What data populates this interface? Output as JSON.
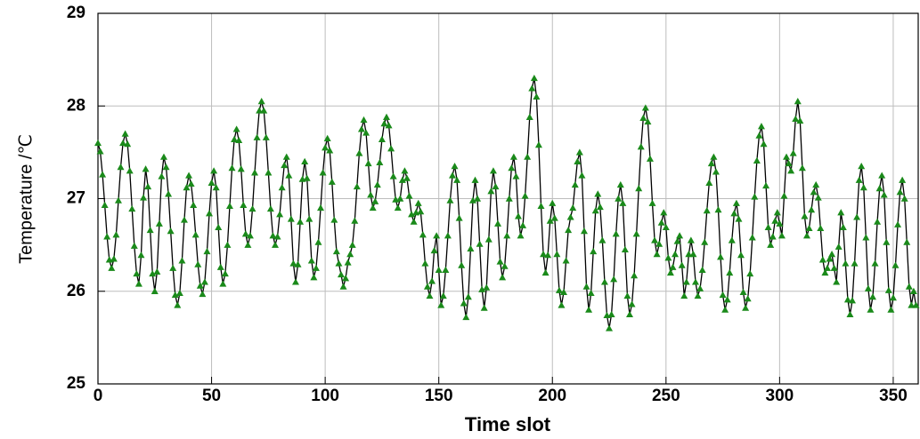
{
  "chart_data": {
    "type": "line",
    "xlabel": "Time slot",
    "ylabel": "Temperature /℃",
    "xlim": [
      0,
      361
    ],
    "ylim": [
      25,
      29
    ],
    "xticks": [
      0,
      50,
      100,
      150,
      200,
      250,
      300,
      350
    ],
    "yticks": [
      25,
      26,
      27,
      28,
      29
    ],
    "grid": true,
    "line_color": "#000000",
    "marker": "triangle",
    "x": [
      0,
      1,
      2,
      3,
      4,
      5,
      6,
      7,
      8,
      9,
      10,
      11,
      12,
      13,
      14,
      15,
      16,
      17,
      18,
      19,
      20,
      21,
      22,
      23,
      24,
      25,
      26,
      27,
      28,
      29,
      30,
      31,
      32,
      33,
      34,
      35,
      36,
      37,
      38,
      39,
      40,
      41,
      42,
      43,
      44,
      45,
      46,
      47,
      48,
      49,
      50,
      51,
      52,
      53,
      54,
      55,
      56,
      57,
      58,
      59,
      60,
      61,
      62,
      63,
      64,
      65,
      66,
      67,
      68,
      69,
      70,
      71,
      72,
      73,
      74,
      75,
      76,
      77,
      78,
      79,
      80,
      81,
      82,
      83,
      84,
      85,
      86,
      87,
      88,
      89,
      90,
      91,
      92,
      93,
      94,
      95,
      96,
      97,
      98,
      99,
      100,
      101,
      102,
      103,
      104,
      105,
      106,
      107,
      108,
      109,
      110,
      111,
      112,
      113,
      114,
      115,
      116,
      117,
      118,
      119,
      120,
      121,
      122,
      123,
      124,
      125,
      126,
      127,
      128,
      129,
      130,
      131,
      132,
      133,
      134,
      135,
      136,
      137,
      138,
      139,
      140,
      141,
      142,
      143,
      144,
      145,
      146,
      147,
      148,
      149,
      150,
      151,
      152,
      153,
      154,
      155,
      156,
      157,
      158,
      159,
      160,
      161,
      162,
      163,
      164,
      165,
      166,
      167,
      168,
      169,
      170,
      171,
      172,
      173,
      174,
      175,
      176,
      177,
      178,
      179,
      180,
      181,
      182,
      183,
      184,
      185,
      186,
      187,
      188,
      189,
      190,
      191,
      192,
      193,
      194,
      195,
      196,
      197,
      198,
      199,
      200,
      201,
      202,
      203,
      204,
      205,
      206,
      207,
      208,
      209,
      210,
      211,
      212,
      213,
      214,
      215,
      216,
      217,
      218,
      219,
      220,
      221,
      222,
      223,
      224,
      225,
      226,
      227,
      228,
      229,
      230,
      231,
      232,
      233,
      234,
      235,
      236,
      237,
      238,
      239,
      240,
      241,
      242,
      243,
      244,
      245,
      246,
      247,
      248,
      249,
      250,
      251,
      252,
      253,
      254,
      255,
      256,
      257,
      258,
      259,
      260,
      261,
      262,
      263,
      264,
      265,
      266,
      267,
      268,
      269,
      270,
      271,
      272,
      273,
      274,
      275,
      276,
      277,
      278,
      279,
      280,
      281,
      282,
      283,
      284,
      285,
      286,
      287,
      288,
      289,
      290,
      291,
      292,
      293,
      294,
      295,
      296,
      297,
      298,
      299,
      300,
      301,
      302,
      303,
      304,
      305,
      306,
      307,
      308,
      309,
      310,
      311,
      312,
      313,
      314,
      315,
      316,
      317,
      318,
      319,
      320,
      321,
      322,
      323,
      324,
      325,
      326,
      327,
      328,
      329,
      330,
      331,
      332,
      333,
      334,
      335,
      336,
      337,
      338,
      339,
      340,
      341,
      342,
      343,
      344,
      345,
      346,
      347,
      348,
      349,
      350,
      351,
      352,
      353,
      354,
      355,
      356,
      357,
      358,
      359,
      360
    ],
    "series": [
      {
        "color": "#1a8a1a",
        "values": [
          27.6,
          27.51,
          27.26,
          26.93,
          26.59,
          26.34,
          26.25,
          26.35,
          26.61,
          26.98,
          27.34,
          27.6,
          27.7,
          27.59,
          27.3,
          26.89,
          26.49,
          26.19,
          26.08,
          26.39,
          27.01,
          27.32,
          27.13,
          26.66,
          26.19,
          26.0,
          26.21,
          26.73,
          27.24,
          27.45,
          27.34,
          27.05,
          26.65,
          26.25,
          25.96,
          25.85,
          25.98,
          26.33,
          26.77,
          27.12,
          27.25,
          27.16,
          26.93,
          26.61,
          26.29,
          26.06,
          25.97,
          26.1,
          26.43,
          26.84,
          27.17,
          27.3,
          27.12,
          26.69,
          26.26,
          26.08,
          26.19,
          26.5,
          26.92,
          27.33,
          27.64,
          27.75,
          27.63,
          27.32,
          26.93,
          26.62,
          26.5,
          26.6,
          26.89,
          27.28,
          27.66,
          27.95,
          28.05,
          27.95,
          27.66,
          27.28,
          26.89,
          26.6,
          26.5,
          26.59,
          26.83,
          27.12,
          27.36,
          27.45,
          27.25,
          26.78,
          26.3,
          26.1,
          26.29,
          26.75,
          27.21,
          27.4,
          27.22,
          26.78,
          26.33,
          26.15,
          26.25,
          26.53,
          26.9,
          27.28,
          27.55,
          27.65,
          27.52,
          27.18,
          26.77,
          26.43,
          26.3,
          26.18,
          26.05,
          26.14,
          26.31,
          26.4,
          26.5,
          26.76,
          27.13,
          27.49,
          27.75,
          27.85,
          27.71,
          27.38,
          27.04,
          26.9,
          26.97,
          27.15,
          27.39,
          27.64,
          27.81,
          27.88,
          27.79,
          27.54,
          27.24,
          26.99,
          26.9,
          27.0,
          27.2,
          27.3,
          27.22,
          27.03,
          26.83,
          26.75,
          26.85,
          26.95,
          26.86,
          26.61,
          26.3,
          26.05,
          25.95,
          26.11,
          26.44,
          26.6,
          26.23,
          25.85,
          25.95,
          26.23,
          26.6,
          26.98,
          27.25,
          27.35,
          27.2,
          26.79,
          26.28,
          25.87,
          25.72,
          25.94,
          26.46,
          26.98,
          27.2,
          27.0,
          26.51,
          26.02,
          25.82,
          26.04,
          26.56,
          27.08,
          27.3,
          27.13,
          26.73,
          26.32,
          26.15,
          26.27,
          26.6,
          27.0,
          27.33,
          27.45,
          27.24,
          26.81,
          26.6,
          26.71,
          27.03,
          27.45,
          27.88,
          28.19,
          28.3,
          28.1,
          27.58,
          26.92,
          26.4,
          26.2,
          26.39,
          26.76,
          26.95,
          26.79,
          26.4,
          26.01,
          25.85,
          25.99,
          26.33,
          26.66,
          26.8,
          26.9,
          27.15,
          27.4,
          27.5,
          27.25,
          26.65,
          26.05,
          25.8,
          25.98,
          26.43,
          26.87,
          27.05,
          26.91,
          26.55,
          26.1,
          25.74,
          25.6,
          25.75,
          26.13,
          26.62,
          27.0,
          27.15,
          26.95,
          26.45,
          25.95,
          25.75,
          25.86,
          26.17,
          26.62,
          27.11,
          27.56,
          27.87,
          27.98,
          27.83,
          27.43,
          26.95,
          26.55,
          26.4,
          26.51,
          26.74,
          26.85,
          26.69,
          26.36,
          26.2,
          26.26,
          26.4,
          26.54,
          26.6,
          26.28,
          25.95,
          26.1,
          26.4,
          26.55,
          26.4,
          26.1,
          25.95,
          26.03,
          26.23,
          26.53,
          26.87,
          27.17,
          27.38,
          27.45,
          27.29,
          26.88,
          26.37,
          25.96,
          25.8,
          25.91,
          26.2,
          26.55,
          26.84,
          26.95,
          26.78,
          26.39,
          25.99,
          25.82,
          25.92,
          26.19,
          26.58,
          27.02,
          27.41,
          27.68,
          27.78,
          27.59,
          27.14,
          26.69,
          26.5,
          26.59,
          26.76,
          26.85,
          26.73,
          26.6,
          27.03,
          27.45,
          27.38,
          27.3,
          27.49,
          27.86,
          28.05,
          27.84,
          27.33,
          26.81,
          26.6,
          26.68,
          26.88,
          27.07,
          27.15,
          27.01,
          26.68,
          26.34,
          26.2,
          26.25,
          26.35,
          26.4,
          26.25,
          26.1,
          26.48,
          26.85,
          26.69,
          26.3,
          25.91,
          25.75,
          25.9,
          26.3,
          26.8,
          27.2,
          27.35,
          27.12,
          26.58,
          26.03,
          25.8,
          25.94,
          26.3,
          26.75,
          27.11,
          27.25,
          27.04,
          26.53,
          26.01,
          25.8,
          25.93,
          26.28,
          26.72,
          27.07,
          27.2,
          27.0,
          26.53,
          26.05,
          25.85,
          26.0,
          25.85
        ]
      }
    ]
  }
}
